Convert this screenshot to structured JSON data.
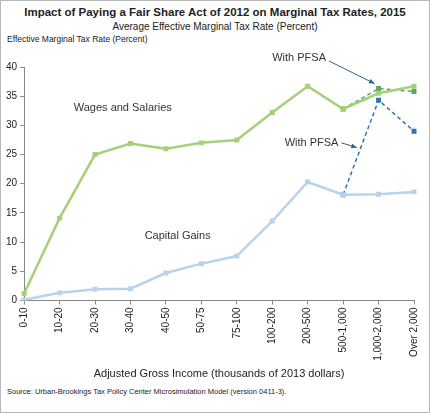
{
  "chart_data": {
    "type": "line",
    "title": "Impact of Paying a Fair Share Act of 2012 on Marginal Tax Rates, 2015",
    "subtitle": "Average Effective Marginal Tax Rate (Percent)",
    "y_label": "Effective Marginal Tax Rate (Percent)",
    "x_label": "Adjusted Gross Income (thousands of 2013 dollars)",
    "source": "Source: Urban-Brookings Tax Policy Center Microsimulation Model (version 0411-3).",
    "categories": [
      "0-10",
      "10-20",
      "20-30",
      "30-40",
      "40-50",
      "50-75",
      "75-100",
      "100-200",
      "200-500",
      "500-1,000",
      "1,000-2,000",
      "Over 2,000"
    ],
    "series": [
      {
        "name": "Wages and Salaries",
        "color": "#a6cf7a",
        "line_style": "solid",
        "marker": "square",
        "values": [
          1.2,
          14.1,
          25.0,
          26.9,
          26.0,
          27.0,
          27.5,
          32.2,
          36.7,
          32.8,
          35.5,
          36.7
        ]
      },
      {
        "name": "Capital Gains",
        "color": "#b7d3ee",
        "line_style": "solid",
        "marker": "square",
        "values": [
          0.1,
          1.3,
          1.9,
          2.0,
          4.7,
          6.3,
          7.6,
          13.6,
          20.3,
          18.1,
          18.2,
          18.6
        ]
      },
      {
        "name": "With PFSA",
        "color": "#5aa860",
        "line_style": "dashed",
        "marker": "square",
        "values": [
          null,
          null,
          null,
          null,
          null,
          null,
          null,
          null,
          null,
          32.8,
          36.3,
          35.8
        ]
      },
      {
        "name": "With PFSA",
        "color": "#2f73b5",
        "line_style": "dashed",
        "marker": "square",
        "values": [
          null,
          null,
          null,
          null,
          null,
          null,
          null,
          null,
          null,
          18.1,
          34.3,
          29.0
        ]
      }
    ],
    "ylim": [
      0,
      40
    ],
    "yticks": [
      0,
      5,
      10,
      15,
      20,
      25,
      30,
      35,
      40
    ],
    "grid": false
  }
}
